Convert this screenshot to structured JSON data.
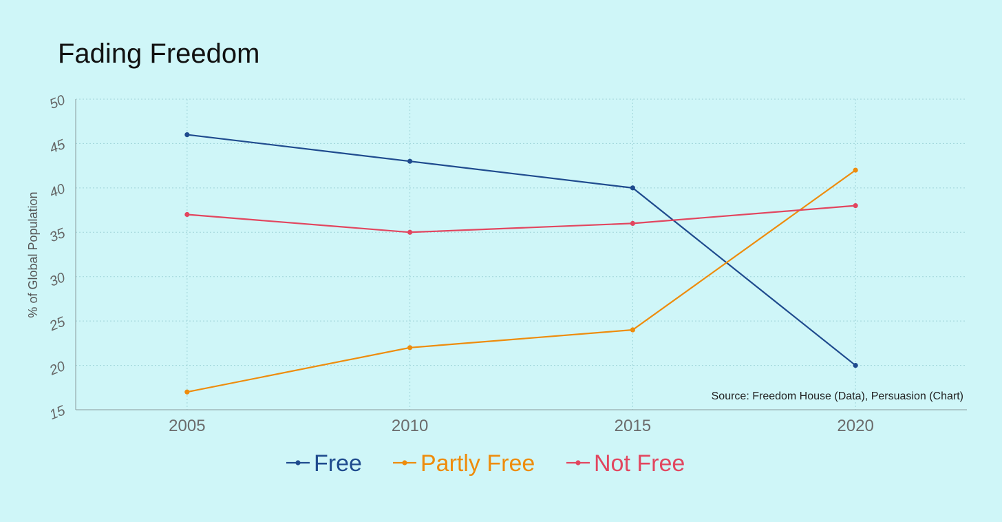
{
  "chart_data": {
    "type": "line",
    "title": "Fading Freedom",
    "ylabel": "% of Global Population",
    "xlabel": "",
    "x": [
      2005,
      2010,
      2015,
      2020
    ],
    "x_tick_labels": [
      "2005",
      "2010",
      "2015",
      "2020"
    ],
    "xlim": [
      2002.5,
      2022.5
    ],
    "ylim": [
      15,
      50
    ],
    "y_ticks": [
      15,
      20,
      25,
      30,
      35,
      40,
      45,
      50
    ],
    "y_tick_labels": [
      "15",
      "20",
      "25",
      "30",
      "35",
      "40",
      "45",
      "50"
    ],
    "grid": true,
    "legend_position": "bottom",
    "source": "Source: Freedom House (Data), Persuasion (Chart)",
    "series": [
      {
        "name": "Free",
        "color": "#1F4B8E",
        "values": [
          46,
          43,
          40,
          20
        ]
      },
      {
        "name": "Partly Free",
        "color": "#EE8C0C",
        "values": [
          17,
          22,
          24,
          42
        ]
      },
      {
        "name": "Not Free",
        "color": "#E2465F",
        "values": [
          37,
          35,
          36,
          38
        ]
      }
    ]
  }
}
